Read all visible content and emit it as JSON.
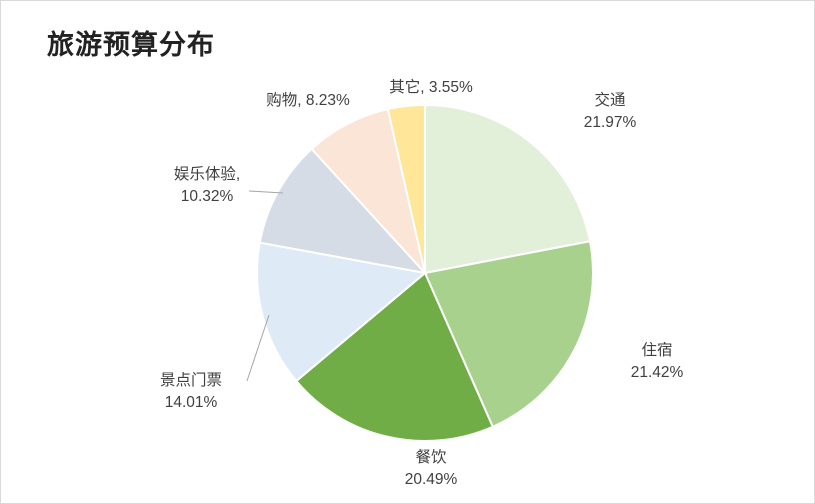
{
  "chart_data": {
    "type": "pie",
    "title": "旅游预算分布",
    "slices": [
      {
        "name": "交通",
        "value": 21.97,
        "label": "21.97%",
        "color": "#e2efd9"
      },
      {
        "name": "住宿",
        "value": 21.42,
        "label": "21.42%",
        "color": "#a9d18e"
      },
      {
        "name": "餐饮",
        "value": 20.49,
        "label": "20.49%",
        "color": "#70ad47"
      },
      {
        "name": "景点门票",
        "value": 14.01,
        "label": "14.01%",
        "color": "#deebf7"
      },
      {
        "name": "娱乐体验",
        "value": 10.32,
        "label": "10.32%",
        "color": "#d6dce5"
      },
      {
        "name": "购物",
        "value": 8.23,
        "label": "8.23%",
        "color": "#fbe5d6"
      },
      {
        "name": "其它",
        "value": 3.55,
        "label": "3.55%",
        "color": "#ffe699"
      }
    ]
  }
}
